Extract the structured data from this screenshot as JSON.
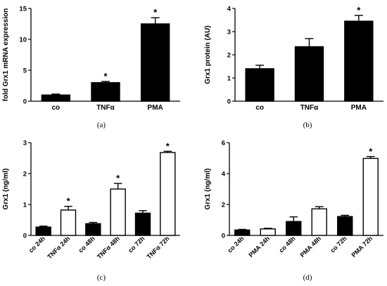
{
  "chart_data": [
    {
      "panel": "(a)",
      "type": "bar",
      "ylabel": "fold Grx1 mRNA expression",
      "ylim": [
        0,
        15
      ],
      "yticks": [
        0,
        5,
        10,
        15
      ],
      "categories": [
        "co",
        "TNFα",
        "PMA"
      ],
      "values": [
        1.0,
        3.0,
        12.5
      ],
      "errors": [
        0.15,
        0.2,
        1.0
      ],
      "significant": [
        false,
        true,
        true
      ],
      "fills": [
        "black",
        "black",
        "black"
      ],
      "significance_marker": "*"
    },
    {
      "panel": "(b)",
      "type": "bar",
      "ylabel": "Grx1 protein (AU)",
      "ylim": [
        0,
        4
      ],
      "yticks": [
        0,
        1,
        2,
        3,
        4
      ],
      "categories": [
        "co",
        "TNFα",
        "PMA"
      ],
      "values": [
        1.4,
        2.35,
        3.45
      ],
      "errors": [
        0.15,
        0.35,
        0.25
      ],
      "significant": [
        false,
        false,
        true
      ],
      "fills": [
        "black",
        "black",
        "black"
      ],
      "significance_marker": "*"
    },
    {
      "panel": "(c)",
      "type": "bar",
      "ylabel": "Grx1 (ng/ml)",
      "ylim": [
        0,
        3
      ],
      "yticks": [
        0,
        1,
        2,
        3
      ],
      "categories": [
        "co 24h",
        "TNFα 24h",
        "co 48h",
        "TNFα 48h",
        "co 72h",
        "TNFα 72h"
      ],
      "values": [
        0.27,
        0.82,
        0.38,
        1.5,
        0.72,
        2.68
      ],
      "errors": [
        0.03,
        0.12,
        0.04,
        0.18,
        0.08,
        0.04
      ],
      "significant": [
        false,
        true,
        false,
        true,
        false,
        true
      ],
      "fills": [
        "black",
        "white",
        "black",
        "white",
        "black",
        "white"
      ],
      "significance_marker": "*"
    },
    {
      "panel": "(d)",
      "type": "bar",
      "ylabel": "Grx1 (ng/ml)",
      "ylim": [
        0,
        6
      ],
      "yticks": [
        0,
        2,
        4,
        6
      ],
      "categories": [
        "co 24h",
        "PMA 24h",
        "co 48h",
        "PMA 48h",
        "co 72h",
        "PMA 72h"
      ],
      "values": [
        0.35,
        0.42,
        0.9,
        1.72,
        1.22,
        4.98
      ],
      "errors": [
        0.04,
        0.04,
        0.3,
        0.14,
        0.08,
        0.12
      ],
      "significant": [
        false,
        false,
        false,
        false,
        false,
        true
      ],
      "fills": [
        "black",
        "white",
        "black",
        "white",
        "black",
        "white"
      ],
      "significance_marker": "*"
    }
  ]
}
